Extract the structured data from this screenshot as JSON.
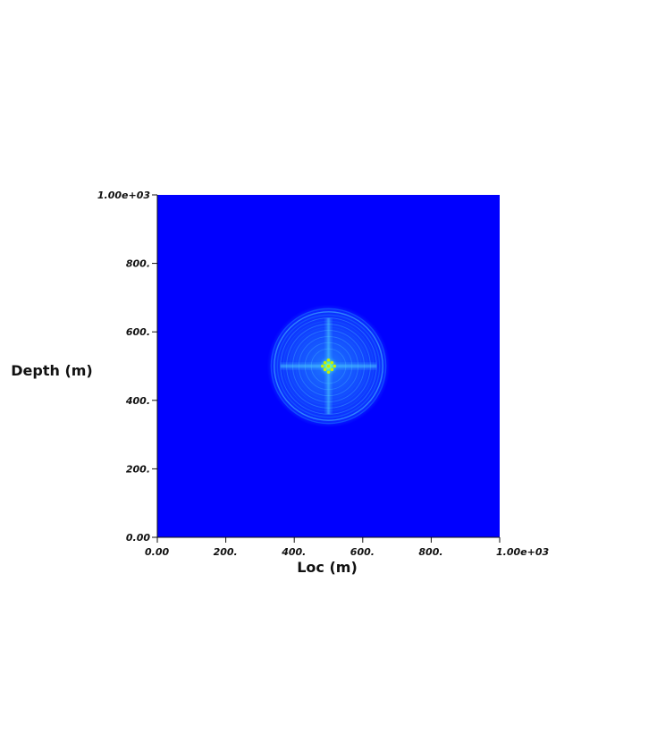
{
  "chart_data": {
    "type": "heatmap",
    "title": "",
    "xlabel": "Loc (m)",
    "ylabel": "Depth (m)",
    "xlim": [
      0,
      1000
    ],
    "ylim": [
      0,
      1000
    ],
    "x_ticks": [
      {
        "value": 0,
        "label": "0.00"
      },
      {
        "value": 200,
        "label": "200."
      },
      {
        "value": 400,
        "label": "400."
      },
      {
        "value": 600,
        "label": "600."
      },
      {
        "value": 800,
        "label": "800."
      },
      {
        "value": 1000,
        "label": "1.00e+03"
      }
    ],
    "y_ticks": [
      {
        "value": 0,
        "label": "0.00"
      },
      {
        "value": 200,
        "label": "200."
      },
      {
        "value": 400,
        "label": "400."
      },
      {
        "value": 600,
        "label": "600."
      },
      {
        "value": 800,
        "label": "800."
      },
      {
        "value": 1000,
        "label": "1.00e+03"
      }
    ],
    "field": {
      "background_color": "#0000ff",
      "source_center": [
        500,
        500
      ],
      "wavefront_radius": 180,
      "cross_pattern_color": "#4fd3ff",
      "hotspot_color": "#c8f000"
    },
    "grid": false,
    "legend": "none"
  }
}
